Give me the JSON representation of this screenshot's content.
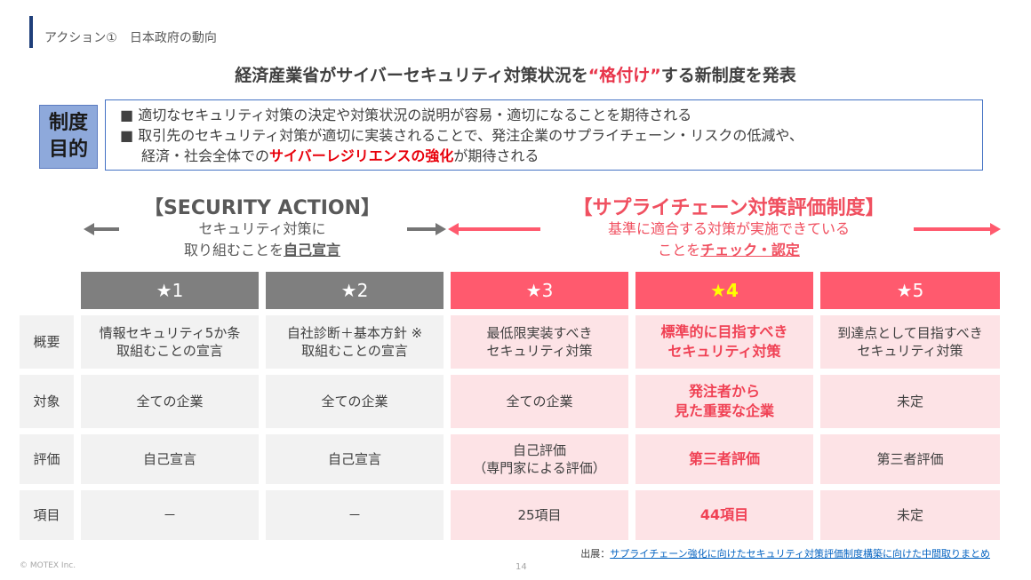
{
  "section_title": "アクション①　日本政府の動向",
  "headline": {
    "pre": "経済産業省がサイバーセキュリティ対策状況を",
    "highlight": "“格付け”",
    "post": "する新制度を発表"
  },
  "purpose": {
    "badge_line1": "制度",
    "badge_line2": "目的",
    "line1": "■ 適切なセキュリティ対策の決定や対策状況の説明が容易・適切になることを期待される",
    "line2a": "■ 取引先のセキュリティ対策が適切に実装されることで、発注企業のサプライチェーン・リスクの低減や、",
    "line2b_pre": "経済・社会全体での",
    "line2b_red": "サイバーレジリエンスの強化",
    "line2b_post": "が期待される"
  },
  "security_action": {
    "title": "【SECURITY ACTION】",
    "sub_line1": "セキュリティ対策に",
    "sub_line2_pre": "取り組むことを",
    "sub_line2_ul": "自己宣言"
  },
  "supply_chain": {
    "title": "【サプライチェーン対策評価制度】",
    "sub_line1": "基準に適合する対策が実施できている",
    "sub_line2_pre": "ことを",
    "sub_line2_ul": "チェック・認定"
  },
  "colors": {
    "accent_pink": "#ff5a6e",
    "gray_header": "#7f7f7f",
    "light_pink": "#fde3e6",
    "light_gray": "#f2f2f2",
    "highlight_red": "#e8344a",
    "star4_gold": "#ffff00"
  },
  "table": {
    "headers": [
      "★1",
      "★2",
      "★3",
      "★4",
      "★5"
    ],
    "rows": [
      {
        "label": "概要",
        "cells": [
          [
            "情報セキュリティ5か条",
            "取組むことの宣言"
          ],
          [
            "自社診断＋基本方針 ※",
            "取組むことの宣言"
          ],
          [
            "最低限実装すべき",
            "セキュリティ対策"
          ],
          [
            "標準的に目指すべき",
            "セキュリティ対策"
          ],
          [
            "到達点として目指すべき",
            "セキュリティ対策"
          ]
        ]
      },
      {
        "label": "対象",
        "cells": [
          [
            "全ての企業",
            ""
          ],
          [
            "全ての企業",
            ""
          ],
          [
            "全ての企業",
            ""
          ],
          [
            "発注者から",
            "見た重要な企業"
          ],
          [
            "未定",
            ""
          ]
        ]
      },
      {
        "label": "評価",
        "cells": [
          [
            "自己宣言",
            ""
          ],
          [
            "自己宣言",
            ""
          ],
          [
            "自己評価",
            "（専門家による評価）"
          ],
          [
            "第三者評価",
            ""
          ],
          [
            "第三者評価",
            ""
          ]
        ]
      },
      {
        "label": "項目",
        "cells": [
          [
            "－",
            ""
          ],
          [
            "－",
            ""
          ],
          [
            "25項目",
            ""
          ],
          [
            "44項目",
            ""
          ],
          [
            "未定",
            ""
          ]
        ]
      }
    ]
  },
  "source": {
    "label": "出展：",
    "link_text": "サプライチェーン強化に向けたセキュリティ対策評価制度構築に向けた中間取りまとめ"
  },
  "footer": {
    "copyright": "© MOTEX Inc.",
    "page_number": "14"
  }
}
